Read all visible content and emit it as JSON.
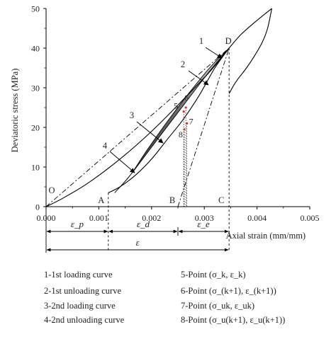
{
  "chart_data": {
    "type": "line",
    "xlabel": "Axial strain (mm/mm)",
    "ylabel": "Deviatoric stress (MPa)",
    "xlim": [
      0,
      0.005
    ],
    "ylim": [
      0,
      50
    ],
    "x_ticks": [
      "0.000",
      "0.001",
      "0.002",
      "0.003",
      "0.004",
      "0.005"
    ],
    "y_ticks": [
      "0",
      "10",
      "20",
      "30",
      "40",
      "50"
    ],
    "grid": false,
    "curve_labels": [
      "1",
      "2",
      "3",
      "4"
    ],
    "point_labels": [
      "O",
      "A",
      "B",
      "C",
      "D"
    ],
    "marker_labels": [
      "5",
      "6",
      "7",
      "8"
    ],
    "strain_labels": [
      "ε_p",
      "ε_d",
      "ε_e",
      "ε"
    ],
    "loops": {
      "first": {
        "loading": {
          "x": [
            0.0,
            0.0003,
            0.0008,
            0.0014,
            0.002,
            0.0026,
            0.0031,
            0.00347
          ],
          "y": [
            0,
            2.0,
            6.0,
            12.0,
            19.0,
            27.0,
            34.0,
            40.0
          ]
        },
        "unloading": {
          "x": [
            0.00347,
            0.0032,
            0.0029,
            0.0026,
            0.0023,
            0.002,
            0.0017,
            0.0014,
            0.00118
          ],
          "y": [
            40.0,
            35.0,
            28.0,
            22.0,
            17.0,
            12.0,
            8.0,
            5.0,
            3.5
          ]
        }
      },
      "second": {
        "loading": {
          "x": [
            0.0013,
            0.0016,
            0.002,
            0.0024,
            0.0028,
            0.00315,
            0.00347
          ],
          "y": [
            3.5,
            8.0,
            15.0,
            22.0,
            29.0,
            35.0,
            40.0
          ]
        },
        "unloading": {
          "x": [
            0.00347,
            0.0031,
            0.0027,
            0.0023,
            0.0019,
            0.0016,
            0.0013
          ],
          "y": [
            40.0,
            35.0,
            28.5,
            21.5,
            14.0,
            8.0,
            3.5
          ]
        }
      },
      "outer": {
        "loading": {
          "x": [
            0.00347,
            0.0037,
            0.004,
            0.00428
          ],
          "y": [
            40.0,
            43.5,
            47.0,
            50.0
          ]
        },
        "unloading": {
          "x": [
            0.00428,
            0.0042,
            0.0041,
            0.00395,
            0.0038,
            0.0036,
            0.00347
          ],
          "y": [
            50.0,
            45.0,
            41.5,
            38.0,
            35.0,
            31.5,
            28.5
          ]
        }
      }
    },
    "reference_lines": {
      "O_to_D": {
        "x": [
          0.0,
          0.00347
        ],
        "y": [
          0,
          40.0
        ]
      },
      "B_to_D": {
        "x": [
          0.0025,
          0.00347
        ],
        "y": [
          0,
          40.0
        ]
      },
      "D_vertical_x": 0.00347,
      "A_vertical_x": 0.00118
    },
    "points": {
      "O": {
        "x": 0.0,
        "y": 0
      },
      "A": {
        "x": 0.00118,
        "y": 0
      },
      "B": {
        "x": 0.0025,
        "y": 0
      },
      "C": {
        "x": 0.00347,
        "y": 0
      },
      "D": {
        "x": 0.00347,
        "y": 40.0
      },
      "5": {
        "x": 0.00261,
        "y": 24.0
      },
      "6": {
        "x": 0.00265,
        "y": 25.0
      },
      "7": {
        "x": 0.00267,
        "y": 21.0
      },
      "8": {
        "x": 0.00262,
        "y": 19.5
      }
    }
  },
  "legend": [
    {
      "label": "1-1st loading curve"
    },
    {
      "label": "2-1st unloading curve"
    },
    {
      "label": "3-2nd loading curve"
    },
    {
      "label": "4-2nd unloading curve"
    },
    {
      "label": "5-Point (σ_k, ε_k)"
    },
    {
      "label": "6-Point (σ_(k+1), ε_(k+1))"
    },
    {
      "label": "7-Point (σ_uk, ε_uk)"
    },
    {
      "label": "8-Point (σ_u(k+1), ε_u(k+1))"
    }
  ],
  "colors": {
    "line": "#000000",
    "fill_dark": "#3a3a3a",
    "fill_light": "#d8d8d8",
    "marker": "#d33a2c"
  }
}
